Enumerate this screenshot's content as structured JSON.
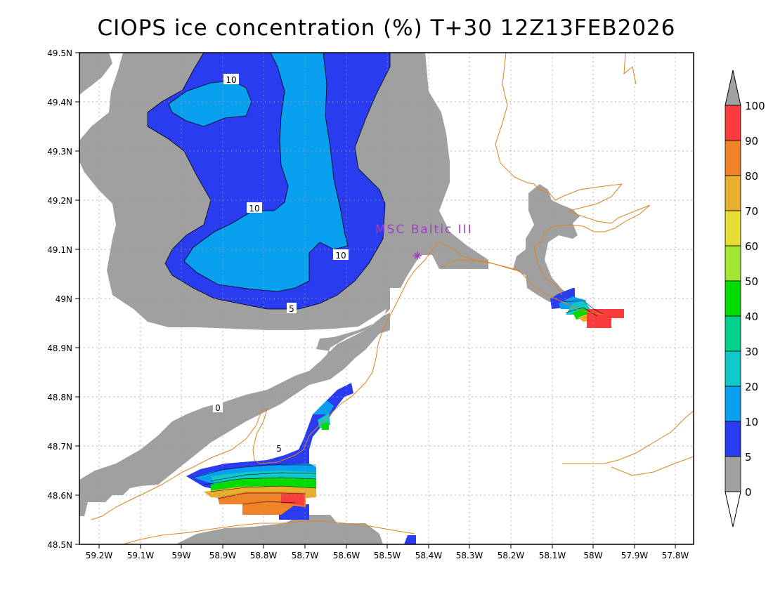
{
  "title": "CIOPS ice concentration (%) T+30 12Z13FEB2026",
  "lat_ticks": [
    "49.5N",
    "49.4N",
    "49.3N",
    "49.2N",
    "49.1N",
    "49N",
    "48.9N",
    "48.8N",
    "48.7N",
    "48.6N",
    "48.5N"
  ],
  "lon_ticks": [
    "59.2W",
    "59.1W",
    "59W",
    "58.9W",
    "58.8W",
    "58.7W",
    "58.6W",
    "58.5W",
    "58.4W",
    "58.3W",
    "58.2W",
    "58.1W",
    "58W",
    "57.9W",
    "57.8W"
  ],
  "station": {
    "label": "MSC Baltic III",
    "lat": 49.09,
    "lon": -58.43
  },
  "contour_labels": [
    "10",
    "10",
    "10",
    "5",
    "0",
    "5"
  ],
  "colorbar": {
    "levels": [
      "0",
      "5",
      "10",
      "20",
      "30",
      "40",
      "50",
      "60",
      "70",
      "80",
      "90",
      "100"
    ],
    "colors": [
      "#ffffff",
      "#a0a0a0",
      "#2a3cf0",
      "#0aa0f0",
      "#10c8c8",
      "#00d28c",
      "#00dc00",
      "#a0e632",
      "#e6dc32",
      "#e6af2d",
      "#f08228",
      "#fa3c3c",
      "#a0a0a0"
    ]
  },
  "colors": {
    "grey": "#a0a0a0",
    "blue": "#2a3cf0",
    "light_blue": "#0aa0f0",
    "coast": "#e08020",
    "station": "#a040c0"
  }
}
